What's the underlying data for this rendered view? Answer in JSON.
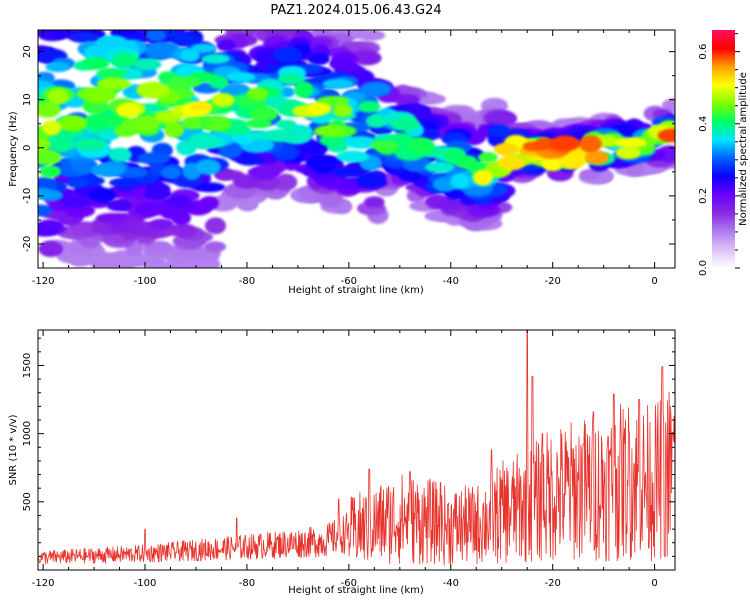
{
  "title": "PAZ1.2024.015.06.43.G24",
  "chart_data": [
    {
      "type": "heatmap",
      "xlabel": "Height of straight line (km)",
      "ylabel": "Frequency (Hz)",
      "xlim": [
        -121,
        4
      ],
      "ylim": [
        -25,
        24.5
      ],
      "xticks": [
        "-120",
        "-100",
        "-80",
        "-60",
        "-40",
        "-20",
        "0"
      ],
      "yticks": [
        "-20",
        "-10",
        "0",
        "10",
        "20"
      ],
      "colorbar": {
        "label": "Normalized spectral amplitude",
        "range": [
          0,
          0.66
        ],
        "ticks": [
          "0.0",
          "0.2",
          "0.4",
          "0.6"
        ],
        "colormap": [
          "#ffffff",
          "#dcc2f7",
          "#b07cef",
          "#8a2be2",
          "#6a00ff",
          "#0a00ff",
          "#0060ff",
          "#00e5ff",
          "#00ff60",
          "#7fff00",
          "#ffff00",
          "#ffa000",
          "#ff0000",
          "#ff1060"
        ]
      },
      "ridge": [
        {
          "x": -118,
          "y": 10
        },
        {
          "x": -100,
          "y": 9
        },
        {
          "x": -80,
          "y": 8
        },
        {
          "x": -70,
          "y": 9
        },
        {
          "x": -60,
          "y": 5
        },
        {
          "x": -50,
          "y": 2
        },
        {
          "x": -42,
          "y": -3
        },
        {
          "x": -35,
          "y": -5
        },
        {
          "x": -28,
          "y": -1
        },
        {
          "x": -20,
          "y": -1
        },
        {
          "x": -10,
          "y": 0
        },
        {
          "x": 0,
          "y": 2
        },
        {
          "x": 4,
          "y": 3
        }
      ]
    },
    {
      "type": "line",
      "xlabel": "Height of straight line (km)",
      "ylabel": "SNR (10 * v/v)",
      "xlim": [
        -121,
        4
      ],
      "ylim": [
        0,
        1760
      ],
      "xticks": [
        "-120",
        "-100",
        "-80",
        "-60",
        "-40",
        "-20",
        "0"
      ],
      "yticks": [
        "500",
        "1000",
        "1500"
      ],
      "series": [
        {
          "color": "#e8322c",
          "trend": [
            {
              "x": -121,
              "y": 90
            },
            {
              "x": -100,
              "y": 120
            },
            {
              "x": -80,
              "y": 170
            },
            {
              "x": -65,
              "y": 210
            },
            {
              "x": -60,
              "y": 280
            },
            {
              "x": -55,
              "y": 330
            },
            {
              "x": -50,
              "y": 380
            },
            {
              "x": -45,
              "y": 360
            },
            {
              "x": -40,
              "y": 320
            },
            {
              "x": -35,
              "y": 330
            },
            {
              "x": -30,
              "y": 420
            },
            {
              "x": -25,
              "y": 470
            },
            {
              "x": -20,
              "y": 560
            },
            {
              "x": -15,
              "y": 590
            },
            {
              "x": -10,
              "y": 610
            },
            {
              "x": -5,
              "y": 660
            },
            {
              "x": 0,
              "y": 640
            },
            {
              "x": 4,
              "y": 760
            }
          ],
          "peaks": [
            {
              "x": -100,
              "y": 300
            },
            {
              "x": -82,
              "y": 380
            },
            {
              "x": -62,
              "y": 520
            },
            {
              "x": -56,
              "y": 740
            },
            {
              "x": -48,
              "y": 720
            },
            {
              "x": -42,
              "y": 640
            },
            {
              "x": -32,
              "y": 880
            },
            {
              "x": -25,
              "y": 1780
            },
            {
              "x": -24,
              "y": 1420
            },
            {
              "x": -22,
              "y": 1000
            },
            {
              "x": -14,
              "y": 920
            },
            {
              "x": -12,
              "y": 1160
            },
            {
              "x": -8,
              "y": 1290
            },
            {
              "x": -5,
              "y": 1010
            },
            {
              "x": -3,
              "y": 1250
            },
            {
              "x": 1.5,
              "y": 1490
            },
            {
              "x": 2,
              "y": 100
            },
            {
              "x": 3.5,
              "y": 1010
            }
          ]
        }
      ]
    }
  ]
}
